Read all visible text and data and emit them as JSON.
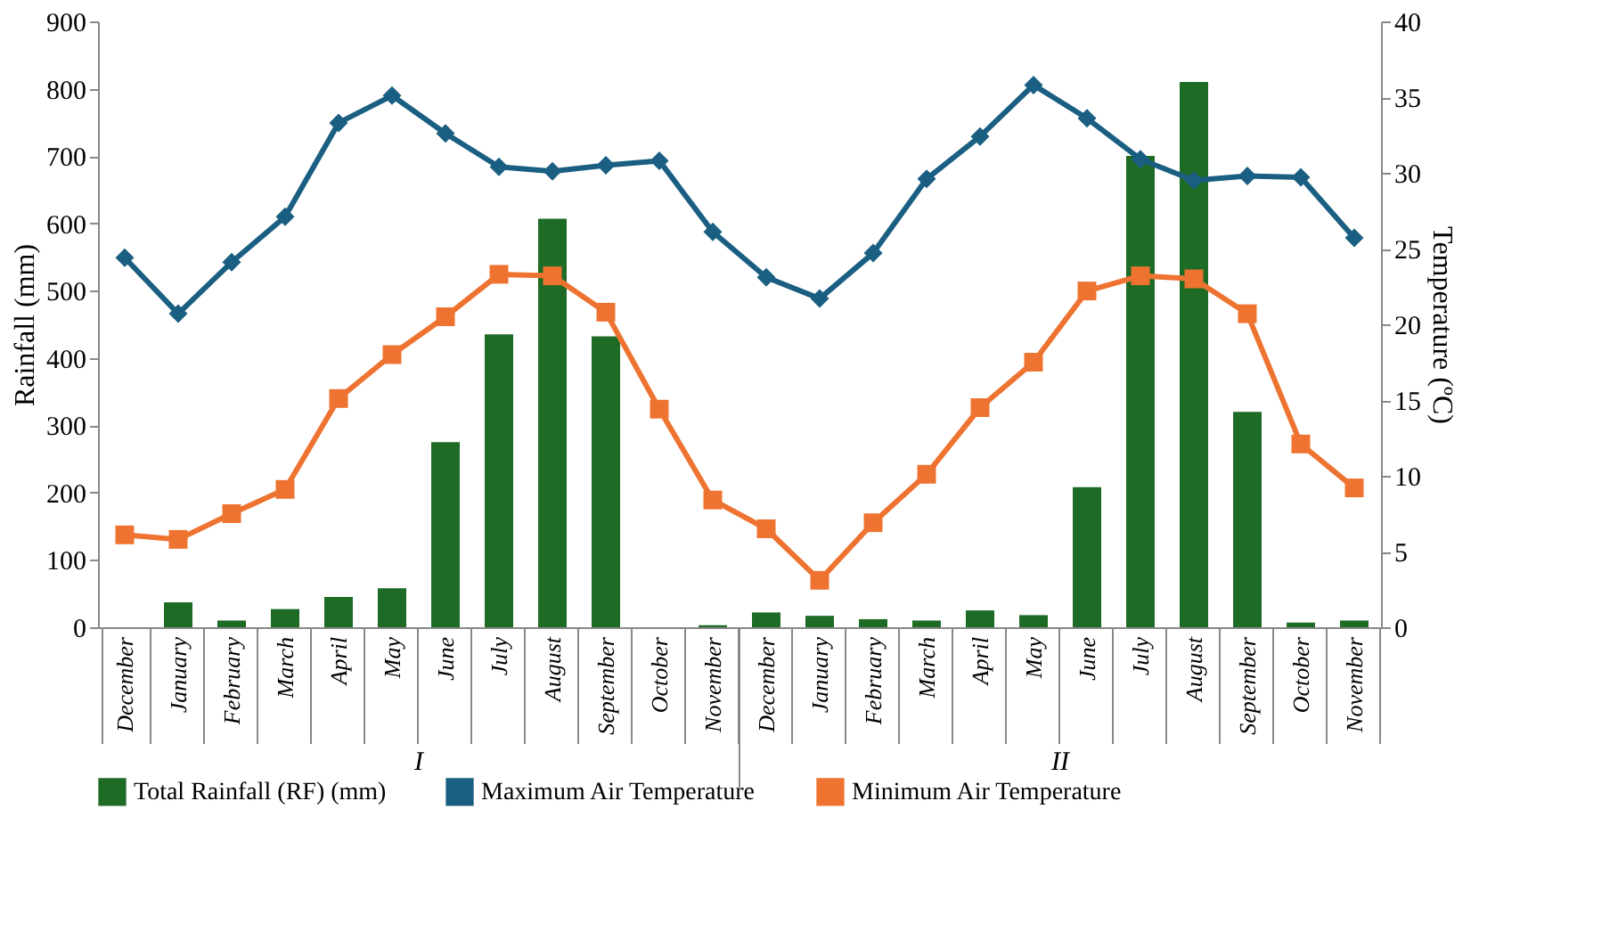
{
  "chart_data": {
    "type": "bar",
    "categories": [
      "December",
      "January",
      "February",
      "March",
      "April",
      "May",
      "June",
      "July",
      "August",
      "September",
      "October",
      "November",
      "December",
      "January",
      "February",
      "March",
      "April",
      "May",
      "June",
      "July",
      "August",
      "September",
      "October",
      "November"
    ],
    "ylabel": "Rainfall (mm)",
    "y2label": "Temperature (ºC)",
    "ylim": [
      0,
      900
    ],
    "yticks": [
      0,
      100,
      200,
      300,
      400,
      500,
      600,
      700,
      800,
      900
    ],
    "y2lim": [
      0,
      40
    ],
    "y2ticks": [
      0,
      5,
      10,
      15,
      20,
      25,
      30,
      35,
      40
    ],
    "grid": false,
    "legend": "bottom",
    "annotations": [
      "I",
      "II"
    ],
    "series": [
      {
        "name": "Total Rainfall (RF) (mm)",
        "color": "#1e6b25",
        "values": [
          0,
          37,
          10,
          27,
          45,
          58,
          275,
          435,
          607,
          432,
          0,
          3,
          22,
          17,
          12,
          10,
          25,
          18,
          208,
          700,
          810,
          320,
          7,
          10
        ]
      },
      {
        "name": "Maximum Air Temperature",
        "type": "line",
        "axis": "y2",
        "color": "#1a5f82",
        "marker": "diamond",
        "values": [
          24.4,
          20.7,
          24.1,
          27.1,
          33.3,
          35.1,
          32.6,
          30.4,
          30.1,
          30.5,
          30.8,
          26.1,
          23.1,
          21.7,
          24.7,
          29.6,
          32.4,
          35.8,
          33.6,
          30.9,
          29.5,
          29.8,
          29.7,
          25.7
        ]
      },
      {
        "name": "Minimum Air Temperature",
        "type": "line",
        "axis": "y2",
        "color": "#ee7330",
        "marker": "square",
        "values": [
          6.1,
          5.8,
          7.5,
          9.1,
          15.1,
          18.0,
          20.5,
          23.3,
          23.2,
          20.8,
          14.4,
          8.4,
          6.5,
          3.1,
          6.9,
          10.1,
          14.5,
          17.5,
          22.2,
          23.2,
          23.0,
          20.7,
          12.1,
          9.2
        ]
      }
    ]
  }
}
